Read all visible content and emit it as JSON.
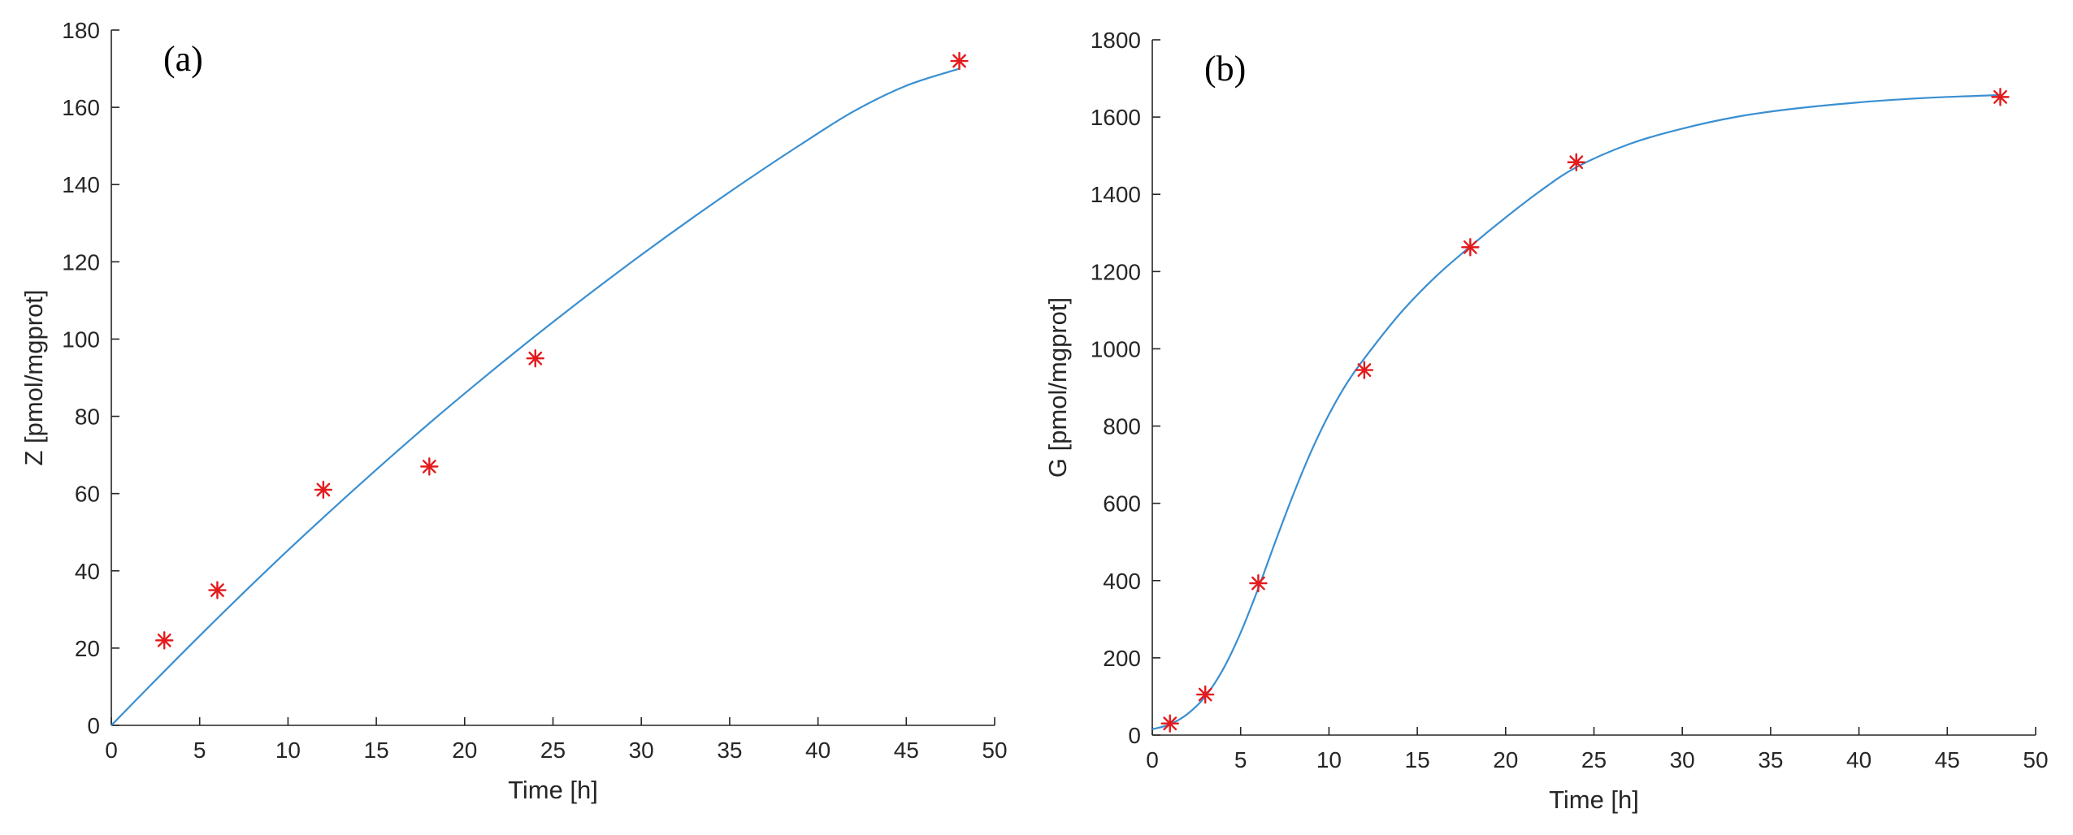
{
  "chart_data": [
    {
      "type": "scatter",
      "panel_label": "(a)",
      "xlabel": "Time [h]",
      "ylabel": "Z [pmol/mgprot]",
      "xlim": [
        0,
        50
      ],
      "ylim": [
        0,
        180
      ],
      "xticks": [
        0,
        5,
        10,
        15,
        20,
        25,
        30,
        35,
        40,
        45,
        50
      ],
      "yticks": [
        0,
        20,
        40,
        60,
        80,
        100,
        120,
        140,
        160,
        180
      ],
      "grid": false,
      "legend": "none",
      "series": [
        {
          "kind": "markers",
          "marker": "asterisk",
          "color": "#e41a1c",
          "x": [
            3,
            6,
            12,
            18,
            24,
            48
          ],
          "y": [
            22,
            35,
            61,
            67,
            95,
            172
          ]
        },
        {
          "kind": "line",
          "color": "#3a8fd1",
          "x": [
            0,
            3,
            6,
            9,
            12,
            15,
            18,
            21,
            24,
            27,
            30,
            33,
            36,
            39,
            42,
            45,
            48
          ],
          "y": [
            0,
            14,
            27.7,
            41,
            53.8,
            66.2,
            78.2,
            89.7,
            100.8,
            111.5,
            121.8,
            131.7,
            141.2,
            150.3,
            158.9,
            165.6,
            170
          ]
        }
      ]
    },
    {
      "type": "scatter",
      "panel_label": "(b)",
      "xlabel": "Time [h]",
      "ylabel": "G [pmol/mgprot]",
      "xlim": [
        0,
        50
      ],
      "ylim": [
        0,
        1800
      ],
      "xticks": [
        0,
        5,
        10,
        15,
        20,
        25,
        30,
        35,
        40,
        45,
        50
      ],
      "yticks": [
        0,
        200,
        400,
        600,
        800,
        1000,
        1200,
        1400,
        1600,
        1800
      ],
      "grid": false,
      "legend": "none",
      "series": [
        {
          "kind": "markers",
          "marker": "asterisk",
          "color": "#e41a1c",
          "x": [
            1,
            3,
            6,
            12,
            18,
            24,
            48
          ],
          "y": [
            30,
            105,
            393,
            945,
            1263,
            1483,
            1652
          ]
        },
        {
          "kind": "line",
          "color": "#3a8fd1",
          "x": [
            0,
            1,
            2,
            3,
            4,
            5,
            6,
            7,
            8,
            9,
            10,
            11,
            12,
            14,
            16,
            18,
            20,
            22,
            24,
            27,
            30,
            33,
            36,
            40,
            44,
            48
          ],
          "y": [
            15,
            28,
            55,
            100,
            170,
            265,
            380,
            505,
            625,
            735,
            830,
            910,
            975,
            1090,
            1185,
            1265,
            1340,
            1410,
            1470,
            1530,
            1570,
            1600,
            1620,
            1638,
            1650,
            1657
          ]
        }
      ]
    }
  ]
}
